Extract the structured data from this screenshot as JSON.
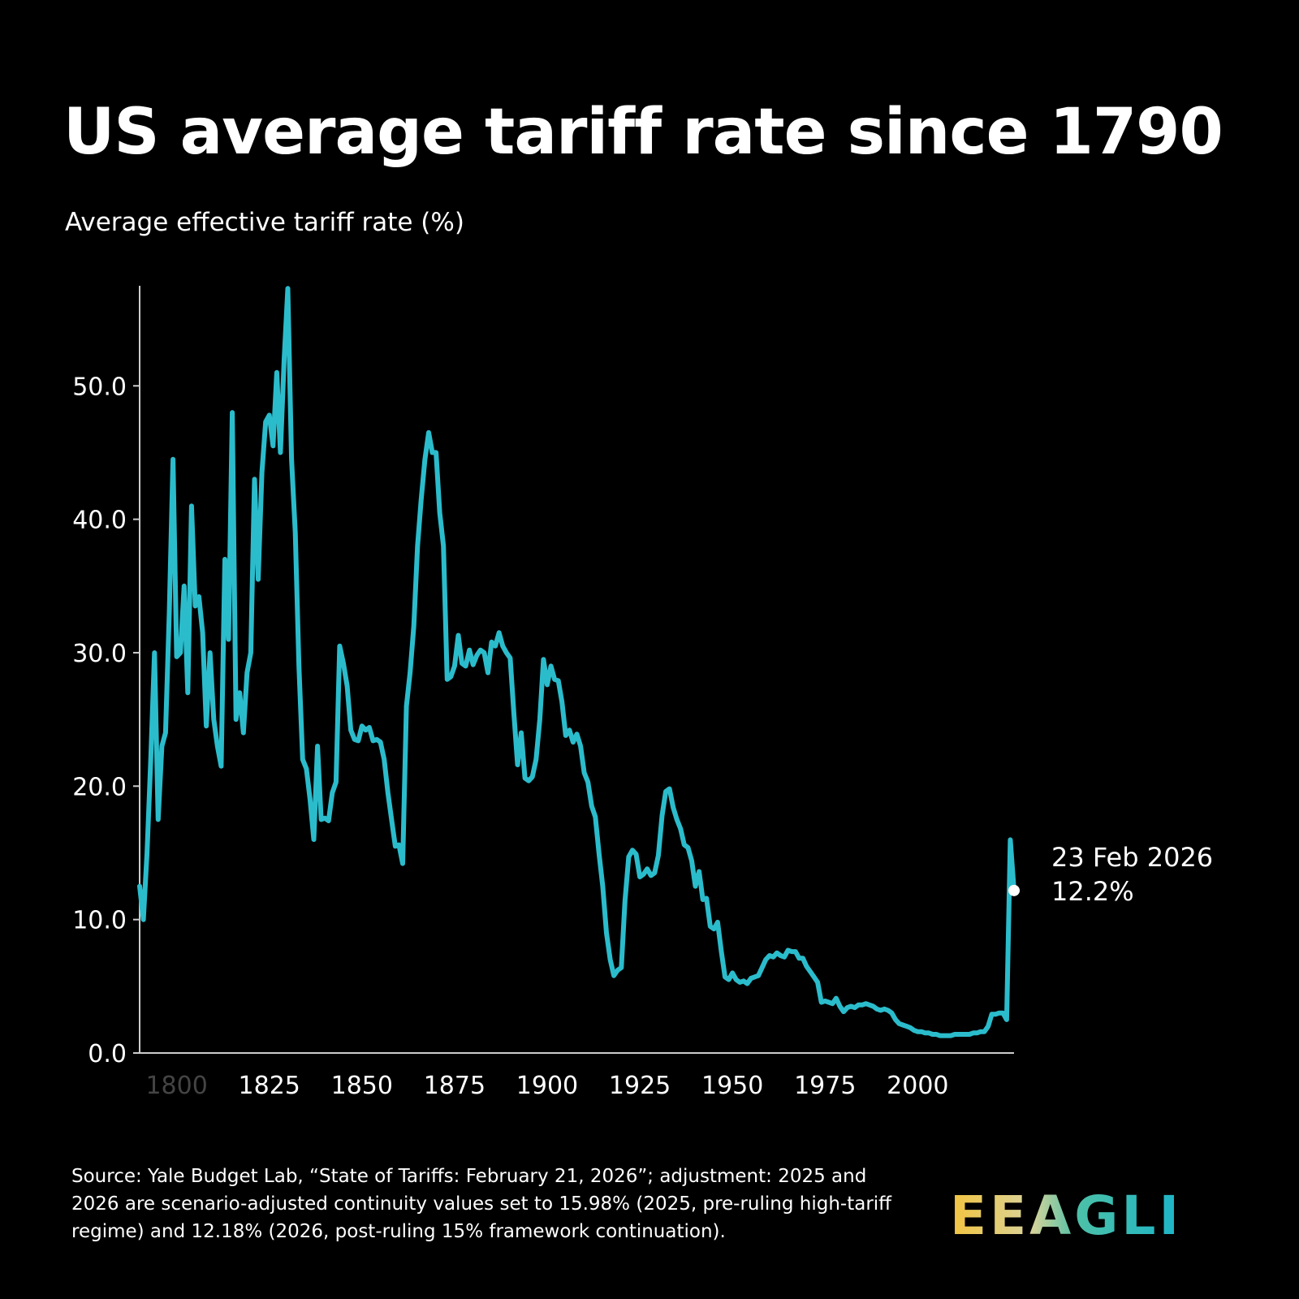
{
  "title": "US average tariff rate since 1790",
  "subtitle": "Average effective tariff rate (%)",
  "source": "Source: Yale Budget Lab, “State of Tariffs: February 21, 2026”; adjustment: 2025 and 2026 are scenario-adjusted continuity values set to 15.98% (2025, pre-ruling high-tariff regime) and 12.18% (2026, post-ruling 15% framework continuation).",
  "logo": "EEAGLI",
  "chart_data": {
    "type": "line",
    "title": "US average tariff rate since 1790",
    "ylabel": "Average effective tariff rate (%)",
    "xlim": [
      1790,
      2026
    ],
    "ylim": [
      0,
      57.5
    ],
    "grid": false,
    "line_color": "#2bbccc",
    "x_ticks": [
      "1800",
      "1825",
      "1850",
      "1875",
      "1900",
      "1925",
      "1950",
      "1975",
      "2000"
    ],
    "x_tick_values": [
      1800,
      1825,
      1850,
      1875,
      1900,
      1925,
      1950,
      1975,
      2000
    ],
    "y_ticks": [
      "0.0",
      "10.0",
      "20.0",
      "30.0",
      "40.0",
      "50.0"
    ],
    "y_tick_values": [
      0,
      10,
      20,
      30,
      40,
      50
    ],
    "annotation": {
      "date": "23 Feb 2026",
      "value_label": "12.2%",
      "x": 2026,
      "y": 12.18
    },
    "x": [
      1790,
      1791,
      1792,
      1793,
      1794,
      1795,
      1796,
      1797,
      1798,
      1799,
      1800,
      1801,
      1802,
      1803,
      1804,
      1805,
      1806,
      1807,
      1808,
      1809,
      1810,
      1811,
      1812,
      1813,
      1814,
      1815,
      1816,
      1817,
      1818,
      1819,
      1820,
      1821,
      1822,
      1823,
      1824,
      1825,
      1826,
      1827,
      1828,
      1829,
      1830,
      1831,
      1832,
      1833,
      1834,
      1835,
      1836,
      1837,
      1838,
      1839,
      1840,
      1841,
      1842,
      1843,
      1844,
      1845,
      1846,
      1847,
      1848,
      1849,
      1850,
      1851,
      1852,
      1853,
      1854,
      1855,
      1856,
      1857,
      1858,
      1859,
      1860,
      1861,
      1862,
      1863,
      1864,
      1865,
      1866,
      1867,
      1868,
      1869,
      1870,
      1871,
      1872,
      1873,
      1874,
      1875,
      1876,
      1877,
      1878,
      1879,
      1880,
      1881,
      1882,
      1883,
      1884,
      1885,
      1886,
      1887,
      1888,
      1889,
      1890,
      1891,
      1892,
      1893,
      1894,
      1895,
      1896,
      1897,
      1898,
      1899,
      1900,
      1901,
      1902,
      1903,
      1904,
      1905,
      1906,
      1907,
      1908,
      1909,
      1910,
      1911,
      1912,
      1913,
      1914,
      1915,
      1916,
      1917,
      1918,
      1919,
      1920,
      1921,
      1922,
      1923,
      1924,
      1925,
      1926,
      1927,
      1928,
      1929,
      1930,
      1931,
      1932,
      1933,
      1934,
      1935,
      1936,
      1937,
      1938,
      1939,
      1940,
      1941,
      1942,
      1943,
      1944,
      1945,
      1946,
      1947,
      1948,
      1949,
      1950,
      1951,
      1952,
      1953,
      1954,
      1955,
      1956,
      1957,
      1958,
      1959,
      1960,
      1961,
      1962,
      1963,
      1964,
      1965,
      1966,
      1967,
      1968,
      1969,
      1970,
      1971,
      1972,
      1973,
      1974,
      1975,
      1976,
      1977,
      1978,
      1979,
      1980,
      1981,
      1982,
      1983,
      1984,
      1985,
      1986,
      1987,
      1988,
      1989,
      1990,
      1991,
      1992,
      1993,
      1994,
      1995,
      1996,
      1997,
      1998,
      1999,
      2000,
      2001,
      2002,
      2003,
      2004,
      2005,
      2006,
      2007,
      2008,
      2009,
      2010,
      2011,
      2012,
      2013,
      2014,
      2015,
      2016,
      2017,
      2018,
      2019,
      2020,
      2021,
      2022,
      2023,
      2024,
      2025,
      2026
    ],
    "values": [
      12.5,
      10,
      15,
      22,
      30,
      17.5,
      23,
      24,
      33,
      44.5,
      29.7,
      30,
      35,
      27,
      41,
      33.5,
      34.2,
      31.5,
      24.5,
      30,
      25,
      23,
      21.5,
      37,
      31,
      48,
      25,
      27,
      24,
      28.5,
      30,
      43,
      35.5,
      43.5,
      47.3,
      47.8,
      45.5,
      51,
      45,
      52,
      57.3,
      44.5,
      39,
      29,
      22,
      21.3,
      19,
      16,
      23,
      17.5,
      17.6,
      17.4,
      19.5,
      20.3,
      30.5,
      29.2,
      27.5,
      24.2,
      23.5,
      23.4,
      24.5,
      24.2,
      24.4,
      23.4,
      23.5,
      23.3,
      22,
      19.5,
      17.5,
      15.5,
      15.6,
      14.2,
      26,
      28.5,
      32,
      38,
      41.5,
      44.5,
      46.5,
      45,
      45,
      40.5,
      38,
      28,
      28.2,
      29,
      31.3,
      29.2,
      29,
      30.2,
      29.1,
      29.8,
      30.2,
      30,
      28.5,
      30.8,
      30.5,
      31.5,
      30.5,
      30,
      29.6,
      25.5,
      21.6,
      24,
      20.6,
      20.4,
      20.7,
      22,
      25,
      29.5,
      27.6,
      29,
      28,
      27.9,
      26.3,
      23.8,
      24.2,
      23.3,
      23.9,
      23,
      21,
      20.3,
      18.5,
      17.7,
      14.9,
      12.5,
      9,
      7,
      5.8,
      6.2,
      6.4,
      11.4,
      14.7,
      15.2,
      14.9,
      13.2,
      13.4,
      13.8,
      13.3,
      13.5,
      14.8,
      17.8,
      19.6,
      19.8,
      18.4,
      17.5,
      16.8,
      15.6,
      15.4,
      14.4,
      12.5,
      13.6,
      11.5,
      11.6,
      9.5,
      9.3,
      9.8,
      7.6,
      5.7,
      5.5,
      6,
      5.5,
      5.3,
      5.4,
      5.2,
      5.6,
      5.7,
      5.8,
      6.4,
      7,
      7.3,
      7.2,
      7.5,
      7.3,
      7.2,
      7.7,
      7.6,
      7.6,
      7.1,
      7.1,
      6.5,
      6.1,
      5.7,
      5.3,
      3.8,
      3.9,
      3.8,
      3.7,
      4.1,
      3.5,
      3.1,
      3.4,
      3.5,
      3.4,
      3.6,
      3.6,
      3.7,
      3.6,
      3.5,
      3.3,
      3.2,
      3.3,
      3.2,
      3,
      2.5,
      2.2,
      2.1,
      2,
      1.9,
      1.7,
      1.6,
      1.6,
      1.5,
      1.5,
      1.4,
      1.4,
      1.3,
      1.3,
      1.3,
      1.3,
      1.4,
      1.4,
      1.4,
      1.4,
      1.4,
      1.5,
      1.5,
      1.6,
      1.6,
      2,
      2.9,
      2.9,
      3,
      3,
      2.5,
      15.98,
      12.18
    ]
  }
}
